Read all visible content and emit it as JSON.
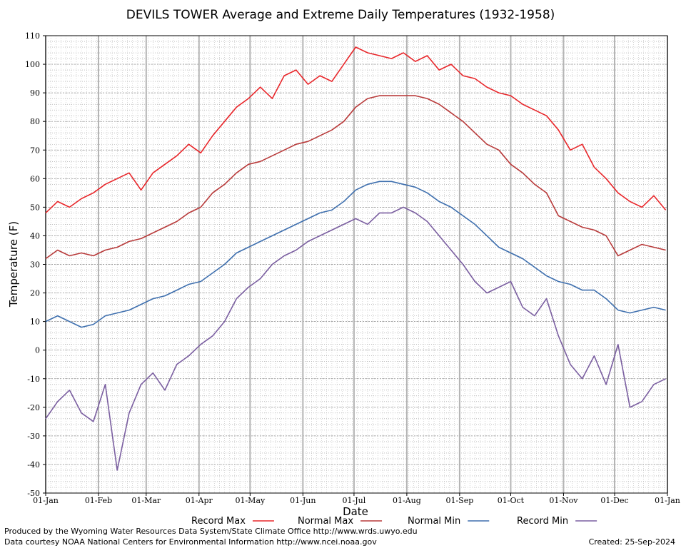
{
  "chart_data": {
    "type": "line",
    "title": "DEVILS TOWER Average and Extreme Daily Temperatures (1932-1958)",
    "xlabel": "Date",
    "ylabel": "Temperature (F)",
    "ylim": [
      -50,
      110
    ],
    "y_ticks": [
      -50,
      -40,
      -30,
      -20,
      -10,
      0,
      10,
      20,
      30,
      40,
      50,
      60,
      70,
      80,
      90,
      100,
      110
    ],
    "x_ticks": [
      {
        "day": 0,
        "label": "01-Jan"
      },
      {
        "day": 31,
        "label": "01-Feb"
      },
      {
        "day": 59,
        "label": "01-Mar"
      },
      {
        "day": 90,
        "label": "01-Apr"
      },
      {
        "day": 120,
        "label": "01-May"
      },
      {
        "day": 151,
        "label": "01-Jun"
      },
      {
        "day": 181,
        "label": "01-Jul"
      },
      {
        "day": 212,
        "label": "01-Aug"
      },
      {
        "day": 243,
        "label": "01-Sep"
      },
      {
        "day": 273,
        "label": "01-Oct"
      },
      {
        "day": 304,
        "label": "01-Nov"
      },
      {
        "day": 334,
        "label": "01-Dec"
      },
      {
        "day": 365,
        "label": "01-Jan"
      }
    ],
    "grid": true,
    "legend_position": "bottom",
    "series": [
      {
        "name": "Record Max",
        "color": "#e8262a",
        "x": [
          0,
          7,
          14,
          21,
          28,
          35,
          42,
          49,
          56,
          63,
          70,
          77,
          84,
          91,
          98,
          105,
          112,
          119,
          126,
          133,
          140,
          147,
          154,
          161,
          168,
          175,
          182,
          189,
          196,
          203,
          210,
          217,
          224,
          231,
          238,
          245,
          252,
          259,
          266,
          273,
          280,
          287,
          294,
          301,
          308,
          315,
          322,
          329,
          336,
          343,
          350,
          357,
          364
        ],
        "y": [
          48,
          52,
          50,
          53,
          55,
          58,
          60,
          62,
          56,
          62,
          65,
          68,
          72,
          69,
          75,
          80,
          85,
          88,
          92,
          88,
          96,
          98,
          93,
          96,
          94,
          100,
          106,
          104,
          103,
          102,
          104,
          101,
          103,
          98,
          100,
          96,
          95,
          92,
          90,
          89,
          86,
          84,
          82,
          77,
          70,
          72,
          64,
          60,
          55,
          52,
          50,
          54,
          49
        ]
      },
      {
        "name": "Normal Max",
        "color": "#b83a3a",
        "x": [
          0,
          7,
          14,
          21,
          28,
          35,
          42,
          49,
          56,
          63,
          70,
          77,
          84,
          91,
          98,
          105,
          112,
          119,
          126,
          133,
          140,
          147,
          154,
          161,
          168,
          175,
          182,
          189,
          196,
          203,
          210,
          217,
          224,
          231,
          238,
          245,
          252,
          259,
          266,
          273,
          280,
          287,
          294,
          301,
          308,
          315,
          322,
          329,
          336,
          343,
          350,
          357,
          364
        ],
        "y": [
          32,
          35,
          33,
          34,
          33,
          35,
          36,
          38,
          39,
          41,
          43,
          45,
          48,
          50,
          55,
          58,
          62,
          65,
          66,
          68,
          70,
          72,
          73,
          75,
          77,
          80,
          85,
          88,
          89,
          89,
          89,
          89,
          88,
          86,
          83,
          80,
          76,
          72,
          70,
          65,
          62,
          58,
          55,
          47,
          45,
          43,
          42,
          40,
          33,
          35,
          37,
          36,
          35
        ]
      },
      {
        "name": "Normal Min",
        "color": "#3e6fae",
        "x": [
          0,
          7,
          14,
          21,
          28,
          35,
          42,
          49,
          56,
          63,
          70,
          77,
          84,
          91,
          98,
          105,
          112,
          119,
          126,
          133,
          140,
          147,
          154,
          161,
          168,
          175,
          182,
          189,
          196,
          203,
          210,
          217,
          224,
          231,
          238,
          245,
          252,
          259,
          266,
          273,
          280,
          287,
          294,
          301,
          308,
          315,
          322,
          329,
          336,
          343,
          350,
          357,
          364
        ],
        "y": [
          10,
          12,
          10,
          8,
          9,
          12,
          13,
          14,
          16,
          18,
          19,
          21,
          23,
          24,
          27,
          30,
          34,
          36,
          38,
          40,
          42,
          44,
          46,
          48,
          49,
          52,
          56,
          58,
          59,
          59,
          58,
          57,
          55,
          52,
          50,
          47,
          44,
          40,
          36,
          34,
          32,
          29,
          26,
          24,
          23,
          21,
          21,
          18,
          14,
          13,
          14,
          15,
          14
        ]
      },
      {
        "name": "Record Min",
        "color": "#7a5ea0",
        "x": [
          0,
          7,
          14,
          21,
          28,
          35,
          42,
          49,
          56,
          63,
          70,
          77,
          84,
          91,
          98,
          105,
          112,
          119,
          126,
          133,
          140,
          147,
          154,
          161,
          168,
          175,
          182,
          189,
          196,
          203,
          210,
          217,
          224,
          231,
          238,
          245,
          252,
          259,
          266,
          273,
          280,
          287,
          294,
          301,
          308,
          315,
          322,
          329,
          336,
          343,
          350,
          357,
          364
        ],
        "y": [
          -24,
          -18,
          -14,
          -22,
          -25,
          -12,
          -42,
          -22,
          -12,
          -8,
          -14,
          -5,
          -2,
          2,
          5,
          10,
          18,
          22,
          25,
          30,
          33,
          35,
          38,
          40,
          42,
          44,
          46,
          44,
          48,
          48,
          50,
          48,
          45,
          40,
          35,
          30,
          24,
          20,
          22,
          24,
          15,
          12,
          18,
          5,
          -5,
          -10,
          -2,
          -12,
          2,
          -20,
          -18,
          -12,
          -10
        ]
      }
    ]
  },
  "footer": {
    "produced_by": "Produced by the Wyoming Water Resources Data System/State Climate Office http://www.wrds.uwyo.edu",
    "data_courtesy": "Data courtesy NOAA National Centers for Environmental Information http://www.ncei.noaa.gov",
    "created": "Created:  25-Sep-2024"
  }
}
